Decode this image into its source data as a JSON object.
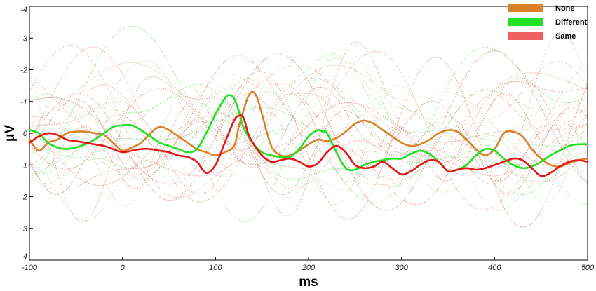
{
  "chart_data": {
    "type": "line",
    "xlabel": "ms",
    "ylabel": "μV",
    "xlim": [
      -100,
      500
    ],
    "ylim": [
      -4,
      4
    ],
    "y_inverted": true,
    "grid": false,
    "legend_position": "top-right",
    "x_ticks": [
      "-100",
      "0",
      "100",
      "200",
      "300",
      "400",
      "500"
    ],
    "y_ticks": [
      "-4",
      "-3",
      "-2",
      "-1",
      "0",
      "1",
      "2",
      "3",
      "4"
    ],
    "series": [
      {
        "name": "None",
        "color": "#D9822B",
        "x": [
          -100,
          -90,
          -80,
          -70,
          -60,
          -50,
          -40,
          -30,
          -20,
          -10,
          0,
          10,
          20,
          30,
          40,
          50,
          60,
          70,
          80,
          90,
          100,
          110,
          120,
          125,
          130,
          135,
          140,
          145,
          150,
          160,
          170,
          180,
          190,
          200,
          210,
          220,
          230,
          240,
          250,
          260,
          270,
          280,
          290,
          300,
          310,
          320,
          330,
          340,
          350,
          360,
          370,
          380,
          390,
          400,
          410,
          420,
          430,
          440,
          450,
          460,
          470,
          480,
          490,
          500
        ],
        "values": [
          0.2,
          0.55,
          0.3,
          0.2,
          0.0,
          -0.05,
          -0.05,
          0.0,
          0.05,
          0.3,
          0.55,
          0.45,
          0.3,
          0.0,
          -0.2,
          -0.1,
          0.1,
          0.3,
          0.5,
          0.6,
          0.7,
          0.6,
          0.4,
          -0.2,
          -0.7,
          -1.15,
          -1.3,
          -1.1,
          -0.6,
          0.4,
          0.7,
          0.7,
          0.55,
          0.35,
          0.2,
          0.25,
          0.15,
          -0.05,
          -0.3,
          -0.4,
          -0.3,
          -0.1,
          0.1,
          0.3,
          0.4,
          0.35,
          0.2,
          0.0,
          -0.1,
          -0.05,
          0.2,
          0.5,
          0.7,
          0.5,
          0.0,
          -0.05,
          0.1,
          0.5,
          0.8,
          1.0,
          1.05,
          0.95,
          0.85,
          0.8
        ]
      },
      {
        "name": "Different",
        "color": "#22E022",
        "x": [
          -100,
          -90,
          -80,
          -70,
          -60,
          -50,
          -40,
          -30,
          -20,
          -10,
          0,
          10,
          20,
          30,
          40,
          50,
          60,
          70,
          80,
          90,
          100,
          110,
          115,
          120,
          125,
          130,
          140,
          150,
          160,
          170,
          180,
          190,
          200,
          210,
          215,
          220,
          230,
          240,
          250,
          260,
          270,
          280,
          290,
          300,
          310,
          320,
          330,
          340,
          350,
          360,
          370,
          380,
          390,
          400,
          410,
          420,
          430,
          440,
          450,
          460,
          470,
          480,
          490,
          500
        ],
        "values": [
          -0.1,
          0.0,
          0.3,
          0.45,
          0.5,
          0.45,
          0.35,
          0.2,
          0.0,
          -0.2,
          -0.25,
          -0.25,
          -0.1,
          0.1,
          0.3,
          0.4,
          0.5,
          0.6,
          0.5,
          0.0,
          -0.6,
          -1.1,
          -1.2,
          -1.1,
          -0.7,
          -0.2,
          0.3,
          0.6,
          0.7,
          0.75,
          0.75,
          0.5,
          0.1,
          -0.1,
          -0.05,
          0.0,
          0.6,
          1.1,
          1.15,
          1.0,
          0.9,
          0.85,
          0.8,
          0.8,
          0.65,
          0.55,
          0.65,
          0.9,
          1.2,
          1.15,
          1.0,
          0.7,
          0.5,
          0.55,
          0.8,
          1.0,
          1.1,
          1.05,
          0.9,
          0.7,
          0.55,
          0.4,
          0.35,
          0.35
        ]
      },
      {
        "name": "Same",
        "color": "#E01818",
        "x": [
          -100,
          -90,
          -80,
          -70,
          -60,
          -50,
          -40,
          -30,
          -20,
          -10,
          0,
          10,
          20,
          30,
          40,
          50,
          60,
          70,
          80,
          90,
          100,
          110,
          120,
          125,
          130,
          135,
          140,
          150,
          160,
          170,
          180,
          190,
          200,
          210,
          220,
          230,
          240,
          250,
          260,
          270,
          280,
          290,
          300,
          310,
          320,
          330,
          340,
          350,
          360,
          370,
          380,
          390,
          400,
          410,
          420,
          430,
          440,
          450,
          460,
          470,
          480,
          490,
          500
        ],
        "values": [
          0.3,
          0.1,
          0.0,
          0.05,
          0.2,
          0.25,
          0.3,
          0.35,
          0.4,
          0.5,
          0.6,
          0.55,
          0.5,
          0.5,
          0.55,
          0.6,
          0.7,
          0.75,
          0.9,
          1.25,
          1.0,
          0.3,
          -0.4,
          -0.55,
          -0.5,
          0.0,
          0.3,
          0.7,
          0.9,
          0.85,
          0.8,
          0.9,
          1.05,
          0.95,
          0.6,
          0.4,
          0.6,
          1.0,
          1.1,
          1.05,
          0.9,
          1.1,
          1.3,
          1.2,
          1.0,
          0.85,
          0.9,
          1.2,
          1.15,
          1.1,
          1.15,
          1.1,
          1.0,
          0.9,
          0.8,
          0.85,
          1.1,
          1.35,
          1.25,
          1.05,
          0.9,
          0.85,
          0.9
        ]
      }
    ]
  }
}
